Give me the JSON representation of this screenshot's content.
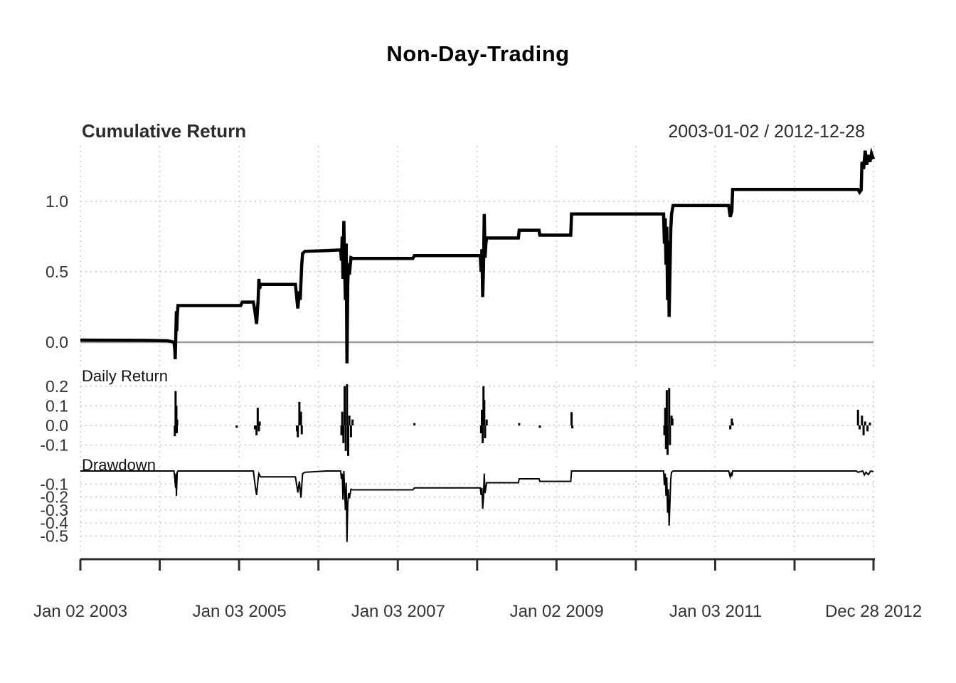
{
  "chart_data": {
    "type": "line",
    "title": "Non-Day-Trading",
    "date_range": "2003-01-02 / 2012-12-28",
    "legend_position": "none",
    "grid": "dotted",
    "x_axis": {
      "t_start": 2003.0,
      "t_end": 2012.995,
      "grid_years": [
        2003,
        2004,
        2005,
        2006,
        2007,
        2008,
        2009,
        2010,
        2011,
        2012,
        2012.995
      ],
      "tick_years": [
        2003,
        2004,
        2005,
        2006,
        2007,
        2008,
        2009,
        2010,
        2011,
        2012,
        2012.995
      ],
      "tick_labels": [
        {
          "t": 2003.0,
          "text": "Jan 02 2003"
        },
        {
          "t": 2005.005,
          "text": "Jan 03 2005"
        },
        {
          "t": 2007.005,
          "text": "Jan 03 2007"
        },
        {
          "t": 2009.003,
          "text": "Jan 02 2009"
        },
        {
          "t": 2011.005,
          "text": "Jan 03 2011"
        },
        {
          "t": 2012.995,
          "text": "Dec 28 2012"
        }
      ]
    },
    "panels": [
      {
        "name": "cumulative-return",
        "label": "Cumulative Return",
        "right_label": "2003-01-02 / 2012-12-28",
        "style": "line",
        "yticks": [
          0.0,
          0.5,
          1.0
        ],
        "ylim": [
          -0.17,
          1.39
        ],
        "zero_line": true,
        "points": [
          [
            2003.0,
            0.015
          ],
          [
            2003.8,
            0.013
          ],
          [
            2004.1,
            0.01
          ],
          [
            2004.16,
            0.003
          ],
          [
            2004.18,
            0.0
          ],
          [
            2004.19,
            -0.055
          ],
          [
            2004.195,
            -0.12
          ],
          [
            2004.205,
            0.1
          ],
          [
            2004.21,
            0.22
          ],
          [
            2004.215,
            0.08
          ],
          [
            2004.22,
            0.18
          ],
          [
            2004.23,
            0.26
          ],
          [
            2005.02,
            0.26
          ],
          [
            2005.04,
            0.285
          ],
          [
            2005.18,
            0.285
          ],
          [
            2005.2,
            0.22
          ],
          [
            2005.22,
            0.13
          ],
          [
            2005.24,
            0.3
          ],
          [
            2005.25,
            0.45
          ],
          [
            2005.26,
            0.38
          ],
          [
            2005.27,
            0.41
          ],
          [
            2005.71,
            0.41
          ],
          [
            2005.73,
            0.3
          ],
          [
            2005.74,
            0.24
          ],
          [
            2005.76,
            0.36
          ],
          [
            2005.77,
            0.3
          ],
          [
            2005.79,
            0.55
          ],
          [
            2005.8,
            0.63
          ],
          [
            2005.83,
            0.645
          ],
          [
            2006.1,
            0.65
          ],
          [
            2006.28,
            0.655
          ],
          [
            2006.29,
            0.58
          ],
          [
            2006.3,
            0.75
          ],
          [
            2006.31,
            0.45
          ],
          [
            2006.32,
            0.86
          ],
          [
            2006.33,
            0.52
          ],
          [
            2006.34,
            0.3
          ],
          [
            2006.35,
            0.7
          ],
          [
            2006.36,
            -0.15
          ],
          [
            2006.37,
            0.42
          ],
          [
            2006.38,
            0.56
          ],
          [
            2006.39,
            0.48
          ],
          [
            2006.41,
            0.6
          ],
          [
            2006.43,
            0.595
          ],
          [
            2007.19,
            0.595
          ],
          [
            2007.21,
            0.615
          ],
          [
            2008.04,
            0.615
          ],
          [
            2008.05,
            0.5
          ],
          [
            2008.06,
            0.66
          ],
          [
            2008.07,
            0.32
          ],
          [
            2008.08,
            0.52
          ],
          [
            2008.09,
            0.91
          ],
          [
            2008.1,
            0.6
          ],
          [
            2008.11,
            0.7
          ],
          [
            2008.12,
            0.74
          ],
          [
            2008.52,
            0.74
          ],
          [
            2008.53,
            0.795
          ],
          [
            2008.78,
            0.795
          ],
          [
            2008.79,
            0.76
          ],
          [
            2009.18,
            0.76
          ],
          [
            2009.19,
            0.91
          ],
          [
            2010.35,
            0.91
          ],
          [
            2010.36,
            0.7
          ],
          [
            2010.37,
            0.88
          ],
          [
            2010.38,
            0.55
          ],
          [
            2010.39,
            0.82
          ],
          [
            2010.4,
            0.3
          ],
          [
            2010.41,
            0.72
          ],
          [
            2010.42,
            0.18
          ],
          [
            2010.44,
            0.8
          ],
          [
            2010.45,
            0.91
          ],
          [
            2010.47,
            0.97
          ],
          [
            2011.17,
            0.97
          ],
          [
            2011.19,
            0.89
          ],
          [
            2011.21,
            0.93
          ],
          [
            2011.22,
            1.085
          ],
          [
            2012.8,
            1.085
          ],
          [
            2012.82,
            1.065
          ],
          [
            2012.84,
            1.08
          ],
          [
            2012.85,
            1.28
          ],
          [
            2012.87,
            1.23
          ],
          [
            2012.89,
            1.36
          ],
          [
            2012.91,
            1.26
          ],
          [
            2012.93,
            1.33
          ],
          [
            2012.95,
            1.28
          ],
          [
            2012.97,
            1.34
          ],
          [
            2012.995,
            1.3
          ]
        ]
      },
      {
        "name": "daily-return",
        "label": "Daily Return",
        "style": "hbars",
        "yticks": [
          0.2,
          0.1,
          0.0,
          -0.1
        ],
        "ylim": [
          -0.18,
          0.225
        ],
        "zero_line": false,
        "points": [
          [
            2004.19,
            -0.055
          ],
          [
            2004.2,
            0.175
          ],
          [
            2004.21,
            0.1
          ],
          [
            2004.215,
            -0.04
          ],
          [
            2004.22,
            0.03
          ],
          [
            2004.97,
            -0.012
          ],
          [
            2005.2,
            -0.02
          ],
          [
            2005.22,
            -0.05
          ],
          [
            2005.235,
            0.09
          ],
          [
            2005.25,
            -0.03
          ],
          [
            2005.26,
            0.02
          ],
          [
            2005.73,
            -0.03
          ],
          [
            2005.74,
            -0.06
          ],
          [
            2005.76,
            0.12
          ],
          [
            2005.78,
            0.07
          ],
          [
            2005.79,
            -0.045
          ],
          [
            2006.29,
            -0.05
          ],
          [
            2006.3,
            0.07
          ],
          [
            2006.315,
            -0.09
          ],
          [
            2006.33,
            0.2
          ],
          [
            2006.345,
            -0.13
          ],
          [
            2006.36,
            0.21
          ],
          [
            2006.375,
            -0.155
          ],
          [
            2006.39,
            0.05
          ],
          [
            2006.41,
            -0.06
          ],
          [
            2006.43,
            0.03
          ],
          [
            2007.21,
            0.012
          ],
          [
            2008.05,
            -0.04
          ],
          [
            2008.06,
            0.08
          ],
          [
            2008.07,
            -0.09
          ],
          [
            2008.08,
            0.2
          ],
          [
            2008.09,
            0.13
          ],
          [
            2008.1,
            -0.065
          ],
          [
            2008.12,
            0.03
          ],
          [
            2008.53,
            0.012
          ],
          [
            2008.79,
            -0.012
          ],
          [
            2009.19,
            0.068
          ],
          [
            2009.2,
            -0.015
          ],
          [
            2010.36,
            -0.05
          ],
          [
            2010.37,
            0.09
          ],
          [
            2010.38,
            -0.12
          ],
          [
            2010.39,
            0.18
          ],
          [
            2010.4,
            -0.15
          ],
          [
            2010.42,
            0.19
          ],
          [
            2010.43,
            -0.1
          ],
          [
            2010.45,
            0.05
          ],
          [
            2010.46,
            0.035
          ],
          [
            2011.19,
            -0.02
          ],
          [
            2011.21,
            0.035
          ],
          [
            2011.22,
            0.015
          ],
          [
            2012.8,
            0.08
          ],
          [
            2012.82,
            -0.02
          ],
          [
            2012.85,
            0.05
          ],
          [
            2012.87,
            -0.05
          ],
          [
            2012.89,
            0.02
          ],
          [
            2012.92,
            -0.03
          ],
          [
            2012.95,
            0.015
          ]
        ]
      },
      {
        "name": "drawdown",
        "label": "Drawdown",
        "style": "line",
        "yticks": [
          -0.1,
          -0.2,
          -0.3,
          -0.4,
          -0.5
        ],
        "ylim": [
          -0.62,
          0.04
        ],
        "zero_line": false,
        "points": [
          [
            2003.0,
            0
          ],
          [
            2004.18,
            0
          ],
          [
            2004.19,
            -0.06
          ],
          [
            2004.2,
            -0.13
          ],
          [
            2004.205,
            -0.02
          ],
          [
            2004.21,
            -0.19
          ],
          [
            2004.22,
            -0.01
          ],
          [
            2004.23,
            0
          ],
          [
            2005.18,
            0
          ],
          [
            2005.2,
            -0.1
          ],
          [
            2005.22,
            -0.185
          ],
          [
            2005.24,
            -0.06
          ],
          [
            2005.25,
            -0.02
          ],
          [
            2005.27,
            -0.045
          ],
          [
            2005.71,
            -0.045
          ],
          [
            2005.73,
            -0.12
          ],
          [
            2005.74,
            -0.165
          ],
          [
            2005.76,
            -0.08
          ],
          [
            2005.78,
            -0.205
          ],
          [
            2005.8,
            -0.02
          ],
          [
            2005.83,
            -0.01
          ],
          [
            2006.1,
            0
          ],
          [
            2006.28,
            0
          ],
          [
            2006.29,
            -0.06
          ],
          [
            2006.3,
            -0.02
          ],
          [
            2006.31,
            -0.22
          ],
          [
            2006.32,
            0
          ],
          [
            2006.34,
            -0.3
          ],
          [
            2006.35,
            -0.09
          ],
          [
            2006.36,
            -0.545
          ],
          [
            2006.37,
            -0.25
          ],
          [
            2006.38,
            -0.17
          ],
          [
            2006.39,
            -0.21
          ],
          [
            2006.41,
            -0.14
          ],
          [
            2006.43,
            -0.145
          ],
          [
            2007.19,
            -0.145
          ],
          [
            2007.21,
            -0.13
          ],
          [
            2008.04,
            -0.13
          ],
          [
            2008.05,
            -0.185
          ],
          [
            2008.06,
            -0.13
          ],
          [
            2008.07,
            -0.29
          ],
          [
            2008.08,
            -0.2
          ],
          [
            2008.09,
            -0.02
          ],
          [
            2008.1,
            -0.17
          ],
          [
            2008.12,
            -0.09
          ],
          [
            2008.52,
            -0.09
          ],
          [
            2008.53,
            -0.06
          ],
          [
            2008.78,
            -0.06
          ],
          [
            2008.79,
            -0.08
          ],
          [
            2009.18,
            -0.08
          ],
          [
            2009.19,
            0
          ],
          [
            2010.35,
            0
          ],
          [
            2010.36,
            -0.11
          ],
          [
            2010.37,
            -0.02
          ],
          [
            2010.38,
            -0.19
          ],
          [
            2010.39,
            -0.05
          ],
          [
            2010.4,
            -0.32
          ],
          [
            2010.41,
            -0.14
          ],
          [
            2010.42,
            -0.42
          ],
          [
            2010.44,
            -0.06
          ],
          [
            2010.45,
            -0.01
          ],
          [
            2010.47,
            0
          ],
          [
            2011.17,
            0
          ],
          [
            2011.19,
            -0.045
          ],
          [
            2011.2,
            -0.02
          ],
          [
            2011.21,
            -0.04
          ],
          [
            2011.22,
            0
          ],
          [
            2012.78,
            0
          ],
          [
            2012.8,
            -0.01
          ],
          [
            2012.86,
            0
          ],
          [
            2012.88,
            -0.03
          ],
          [
            2012.9,
            -0.01
          ],
          [
            2012.93,
            -0.028
          ],
          [
            2012.96,
            0
          ],
          [
            2012.995,
            -0.005
          ]
        ]
      }
    ],
    "colors": {
      "series": "#000000",
      "zero_line": "#9a9a9a",
      "grid": "#d4d4d4",
      "axis_text": "#333333",
      "label_text": "#111111",
      "axis_line": "#2e2e2e"
    }
  }
}
